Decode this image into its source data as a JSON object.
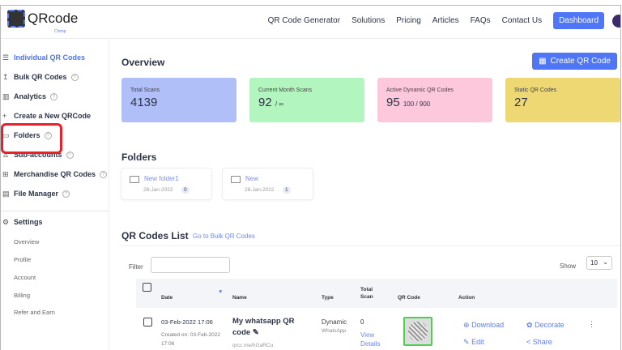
{
  "header": {
    "logo_text": "QRcode",
    "logo_sub": "Chimp",
    "nav": [
      "QR Code Generator",
      "Solutions",
      "Pricing",
      "Articles",
      "FAQs",
      "Contact Us"
    ],
    "dashboard": "Dashboard"
  },
  "sidebar": {
    "items": [
      {
        "label": "Individual QR Codes",
        "icon": "list-icon",
        "help": false
      },
      {
        "label": "Bulk QR Codes",
        "icon": "upload-icon",
        "help": true
      },
      {
        "label": "Analytics",
        "icon": "bar-chart-icon",
        "help": true
      },
      {
        "label": "Create a New QRCode",
        "icon": "plus-icon",
        "help": false
      },
      {
        "label": "Folders",
        "icon": "folder-icon",
        "help": true
      },
      {
        "label": "Sub-accounts",
        "icon": "user-icon",
        "help": true
      },
      {
        "label": "Merchandise QR Codes",
        "icon": "gift-icon",
        "help": true
      },
      {
        "label": "File Manager",
        "icon": "file-icon",
        "help": true
      }
    ],
    "settings": "Settings",
    "sub": [
      "Overview",
      "Profile",
      "Account",
      "Billing",
      "Refer and Earn"
    ],
    "help_glyph": "?"
  },
  "overview": {
    "title": "Overview",
    "create_btn": "Create QR Code",
    "cards": [
      {
        "label": "Total Scans",
        "value": "4139",
        "extra": "",
        "color": "#b0bff8"
      },
      {
        "label": "Current Month Scans",
        "value": "92",
        "extra": "/ ∞",
        "color": "#b2f5bf"
      },
      {
        "label": "Active Dynamic QR Codes",
        "value": "95",
        "extra": "100  / 900",
        "color": "#fdc8dc"
      },
      {
        "label": "Static QR Codes",
        "value": "27",
        "extra": "",
        "color": "#eed873"
      }
    ]
  },
  "folders": {
    "title": "Folders",
    "items": [
      {
        "name": "New folder1",
        "date": "28-Jan-2022",
        "count": "0"
      },
      {
        "name": "New",
        "date": "28-Jan-2022",
        "count": "1"
      }
    ]
  },
  "list": {
    "title": "QR Codes List",
    "bulk_link": "Go to Bulk QR Codes",
    "filter_label": "Filter",
    "filter_value": "",
    "show_label": "Show",
    "show_value": "10",
    "columns": [
      "Date",
      "Name",
      "Type",
      "Total Scan",
      "QR Code",
      "Action"
    ],
    "rows": [
      {
        "date": "03-Feb-2022 17:06",
        "created": "Created on: 03-Feb-2022 17:06",
        "name": "My whatsapp QR code",
        "url": "qrcc.me/hGaRCu",
        "type": "Dynamic",
        "subtype": "WhatsApp",
        "scans": "0",
        "view": "View Details",
        "actions": [
          "Download",
          "Decorate",
          "Edit",
          "Share"
        ]
      }
    ]
  },
  "colors": {
    "accent": "#4f76f6",
    "highlight": "#e8202a"
  }
}
